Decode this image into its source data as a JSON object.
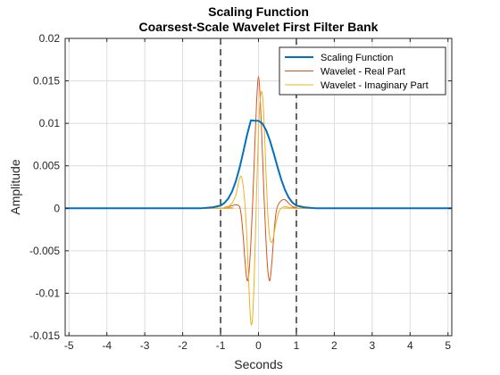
{
  "chart_data": {
    "type": "line",
    "title": "Scaling Function",
    "subtitle": "Coarsest-Scale Wavelet First Filter Bank",
    "xlabel": "Seconds",
    "ylabel": "Amplitude",
    "xlim": [
      -5.1,
      5.1
    ],
    "ylim": [
      -0.015,
      0.02
    ],
    "xticks": [
      -5,
      -4,
      -3,
      -2,
      -1,
      0,
      1,
      2,
      3,
      4,
      5
    ],
    "yticks": [
      -0.015,
      -0.01,
      -0.005,
      0,
      0.005,
      0.01,
      0.015,
      0.02
    ],
    "xtick_labels": [
      "-5",
      "-4",
      "-3",
      "-2",
      "-1",
      "0",
      "1",
      "2",
      "3",
      "4",
      "5"
    ],
    "ytick_labels": [
      "-0.015",
      "-0.01",
      "-0.005",
      "0",
      "0.005",
      "0.01",
      "0.015",
      "0.02"
    ],
    "grid": true,
    "legend_position": "top-right",
    "vlines": [
      {
        "x": -1,
        "style": "dashed",
        "color": "#000000"
      },
      {
        "x": 1,
        "style": "dashed",
        "color": "#000000"
      }
    ],
    "series": [
      {
        "name": "Scaling Function",
        "color": "#0072BD",
        "x": [
          -5.1,
          -1.5,
          -1.2,
          -1.0,
          -0.9,
          -0.8,
          -0.7,
          -0.6,
          -0.5,
          -0.4,
          -0.3,
          -0.2,
          -0.1,
          0.0,
          0.1,
          0.2,
          0.3,
          0.4,
          0.5,
          0.6,
          0.7,
          0.8,
          0.9,
          1.0,
          1.2,
          1.5,
          5.1
        ],
        "y": [
          0,
          1e-05,
          0.00012,
          0.00032,
          0.00062,
          0.00113,
          0.00194,
          0.00314,
          0.00474,
          0.00666,
          0.00866,
          0.01036,
          0.0103,
          0.0103,
          0.01,
          0.0092,
          0.008,
          0.0065,
          0.0049,
          0.0034,
          0.00215,
          0.00125,
          0.00065,
          0.00032,
          0.00012,
          1e-05,
          0
        ]
      },
      {
        "name": "Wavelet - Real Part",
        "color": "#D95319",
        "x": [
          -5.1,
          -1.0,
          -0.9,
          -0.8,
          -0.7,
          -0.6,
          -0.5,
          -0.45,
          -0.4,
          -0.35,
          -0.3,
          -0.25,
          -0.2,
          -0.15,
          -0.1,
          -0.05,
          0.0,
          0.05,
          0.1,
          0.15,
          0.2,
          0.25,
          0.3,
          0.35,
          0.4,
          0.45,
          0.5,
          0.6,
          0.7,
          0.8,
          0.9,
          1.0,
          1.2,
          5.1
        ],
        "y": [
          0,
          0,
          0.0001,
          0.0002,
          0.0003,
          0.0004,
          0.0002,
          -0.001,
          -0.0035,
          -0.0065,
          -0.0085,
          -0.0075,
          -0.004,
          0.001,
          0.007,
          0.0125,
          0.0155,
          0.0125,
          0.007,
          0.001,
          -0.004,
          -0.0075,
          -0.0085,
          -0.0065,
          -0.0035,
          -0.001,
          0.0002,
          0.0009,
          0.001,
          0.0006,
          0.0002,
          0.0001,
          0,
          0
        ]
      },
      {
        "name": "Wavelet - Imaginary Part",
        "color": "#EDB120",
        "x": [
          -5.1,
          -1.0,
          -0.9,
          -0.8,
          -0.7,
          -0.6,
          -0.55,
          -0.5,
          -0.45,
          -0.4,
          -0.35,
          -0.3,
          -0.25,
          -0.2,
          -0.15,
          -0.1,
          -0.05,
          0.0,
          0.05,
          0.1,
          0.15,
          0.2,
          0.25,
          0.3,
          0.35,
          0.4,
          0.45,
          0.5,
          0.55,
          0.6,
          0.7,
          0.8,
          0.9,
          1.0,
          5.1
        ],
        "y": [
          0,
          0,
          5e-05,
          0.0002,
          0.0006,
          0.0015,
          0.0025,
          0.0035,
          0.0037,
          0.0025,
          0.0,
          -0.004,
          -0.0095,
          -0.0135,
          -0.0125,
          -0.0065,
          0.002,
          0.009,
          0.013,
          0.0135,
          0.01,
          0.004,
          -0.001,
          -0.0035,
          -0.004,
          -0.0033,
          -0.002,
          -0.001,
          -0.0003,
          0.0,
          0.0002,
          0.0001,
          5e-05,
          0,
          0
        ]
      }
    ]
  }
}
